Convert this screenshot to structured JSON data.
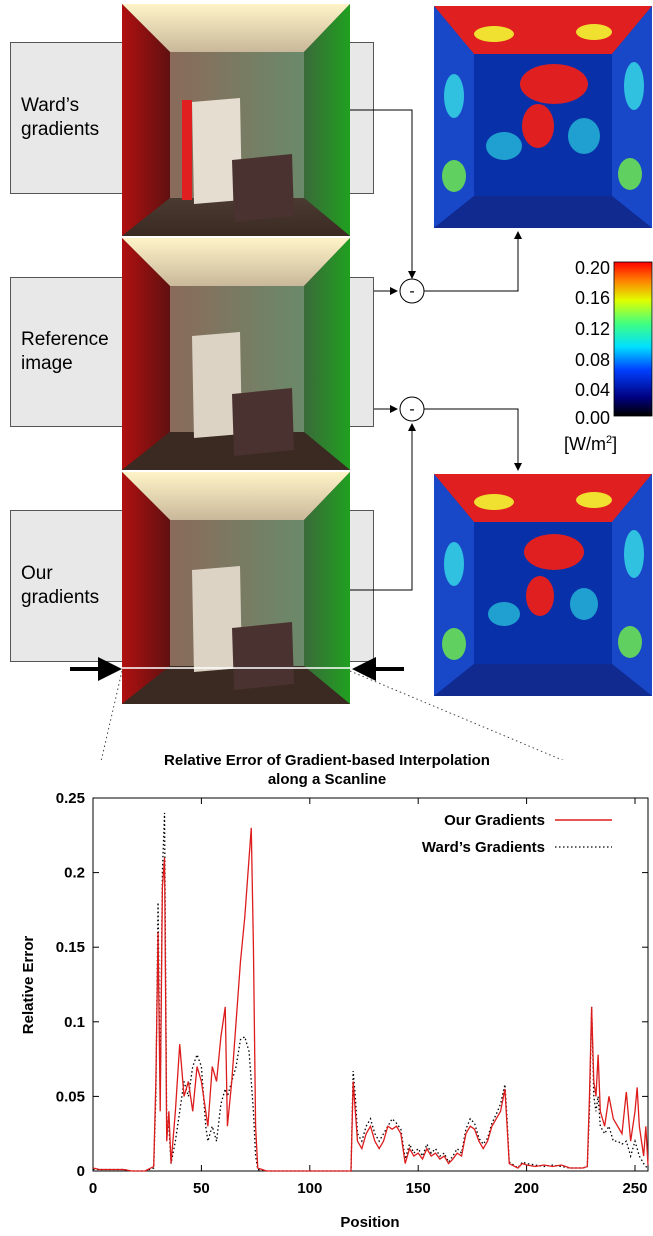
{
  "panels": {
    "wards_label": [
      "Ward’s",
      "gradients"
    ],
    "reference_label": [
      "Reference",
      "image"
    ],
    "ours_label": [
      "Our",
      "gradients"
    ],
    "minus_symbol": "-"
  },
  "colorbar": {
    "ticks": [
      "0.20",
      "0.16",
      "0.12",
      "0.08",
      "0.04",
      "0.00"
    ],
    "unit_main": "[W/m",
    "unit_sup": "2",
    "unit_close": "]"
  },
  "chart_data": {
    "type": "line",
    "title": [
      "Relative Error of Gradient-based Interpolation",
      "along a Scanline"
    ],
    "xlabel": "Position",
    "ylabel": "Relative Error",
    "xlim": [
      0,
      256
    ],
    "ylim": [
      0,
      0.25
    ],
    "xticks": [
      "0",
      "50",
      "100",
      "150",
      "200",
      "250"
    ],
    "yticks": [
      "0",
      "0.05",
      "0.1",
      "0.15",
      "0.2",
      "0.25"
    ],
    "legend_position": "top-right",
    "series": [
      {
        "name": "Our Gradients",
        "color": "#dd1c1c",
        "style": "solid",
        "points": [
          [
            0,
            0.002
          ],
          [
            3,
            0.001
          ],
          [
            6,
            0.001
          ],
          [
            10,
            0.001
          ],
          [
            14,
            0.001
          ],
          [
            18,
            0
          ],
          [
            24,
            0
          ],
          [
            28,
            0.003
          ],
          [
            29,
            0.06
          ],
          [
            30,
            0.16
          ],
          [
            31,
            0.04
          ],
          [
            32,
            0.19
          ],
          [
            33,
            0.21
          ],
          [
            34,
            0.02
          ],
          [
            35,
            0.04
          ],
          [
            36,
            0.005
          ],
          [
            38,
            0.04
          ],
          [
            40,
            0.085
          ],
          [
            42,
            0.05
          ],
          [
            44,
            0.06
          ],
          [
            46,
            0.04
          ],
          [
            48,
            0.07
          ],
          [
            50,
            0.06
          ],
          [
            52,
            0.04
          ],
          [
            53,
            0.03
          ],
          [
            55,
            0.07
          ],
          [
            57,
            0.06
          ],
          [
            59,
            0.09
          ],
          [
            61,
            0.11
          ],
          [
            62,
            0.03
          ],
          [
            64,
            0.06
          ],
          [
            66,
            0.1
          ],
          [
            68,
            0.14
          ],
          [
            70,
            0.17
          ],
          [
            72,
            0.21
          ],
          [
            73,
            0.23
          ],
          [
            74,
            0.15
          ],
          [
            75,
            0.03
          ],
          [
            76,
            0.002
          ],
          [
            80,
            0
          ],
          [
            90,
            0
          ],
          [
            100,
            0
          ],
          [
            110,
            0
          ],
          [
            119,
            0
          ],
          [
            120,
            0.06
          ],
          [
            121,
            0.04
          ],
          [
            122,
            0.02
          ],
          [
            124,
            0.015
          ],
          [
            126,
            0.025
          ],
          [
            128,
            0.03
          ],
          [
            130,
            0.02
          ],
          [
            132,
            0.015
          ],
          [
            134,
            0.02
          ],
          [
            136,
            0.03
          ],
          [
            138,
            0.028
          ],
          [
            140,
            0.03
          ],
          [
            142,
            0.025
          ],
          [
            144,
            0.005
          ],
          [
            146,
            0.015
          ],
          [
            148,
            0.01
          ],
          [
            150,
            0.012
          ],
          [
            152,
            0.008
          ],
          [
            154,
            0.015
          ],
          [
            156,
            0.01
          ],
          [
            158,
            0.012
          ],
          [
            160,
            0.008
          ],
          [
            162,
            0.01
          ],
          [
            164,
            0.005
          ],
          [
            166,
            0.008
          ],
          [
            168,
            0.012
          ],
          [
            170,
            0.01
          ],
          [
            172,
            0.025
          ],
          [
            174,
            0.03
          ],
          [
            176,
            0.028
          ],
          [
            178,
            0.02
          ],
          [
            180,
            0.015
          ],
          [
            182,
            0.02
          ],
          [
            184,
            0.03
          ],
          [
            186,
            0.035
          ],
          [
            188,
            0.04
          ],
          [
            190,
            0.055
          ],
          [
            191,
            0.03
          ],
          [
            192,
            0.005
          ],
          [
            196,
            0.002
          ],
          [
            198,
            0.005
          ],
          [
            200,
            0.004
          ],
          [
            204,
            0.003
          ],
          [
            208,
            0.004
          ],
          [
            212,
            0.003
          ],
          [
            216,
            0.004
          ],
          [
            220,
            0.002
          ],
          [
            226,
            0.002
          ],
          [
            228,
            0.003
          ],
          [
            229,
            0.05
          ],
          [
            230,
            0.11
          ],
          [
            231,
            0.06
          ],
          [
            232,
            0.05
          ],
          [
            233,
            0.078
          ],
          [
            234,
            0.04
          ],
          [
            236,
            0.03
          ],
          [
            238,
            0.05
          ],
          [
            240,
            0.035
          ],
          [
            242,
            0.03
          ],
          [
            244,
            0.025
          ],
          [
            246,
            0.053
          ],
          [
            248,
            0.02
          ],
          [
            250,
            0.04
          ],
          [
            251,
            0.056
          ],
          [
            252,
            0.03
          ],
          [
            254,
            0.01
          ],
          [
            255,
            0.03
          ],
          [
            256,
            0.004
          ]
        ]
      },
      {
        "name": "Ward’s Gradients",
        "color": "#000000",
        "style": "dotted",
        "points": [
          [
            0,
            0.001
          ],
          [
            3,
            0.001
          ],
          [
            6,
            0.001
          ],
          [
            10,
            0.001
          ],
          [
            14,
            0.001
          ],
          [
            18,
            0
          ],
          [
            24,
            0
          ],
          [
            28,
            0.002
          ],
          [
            29,
            0.05
          ],
          [
            30,
            0.18
          ],
          [
            31,
            0.05
          ],
          [
            32,
            0.2
          ],
          [
            33,
            0.24
          ],
          [
            34,
            0.03
          ],
          [
            35,
            0.03
          ],
          [
            36,
            0.005
          ],
          [
            38,
            0.02
          ],
          [
            40,
            0.04
          ],
          [
            42,
            0.06
          ],
          [
            44,
            0.05
          ],
          [
            46,
            0.07
          ],
          [
            48,
            0.078
          ],
          [
            50,
            0.07
          ],
          [
            52,
            0.03
          ],
          [
            53,
            0.02
          ],
          [
            55,
            0.03
          ],
          [
            57,
            0.02
          ],
          [
            59,
            0.045
          ],
          [
            61,
            0.055
          ],
          [
            62,
            0.05
          ],
          [
            64,
            0.06
          ],
          [
            66,
            0.07
          ],
          [
            68,
            0.088
          ],
          [
            70,
            0.09
          ],
          [
            72,
            0.08
          ],
          [
            73,
            0.06
          ],
          [
            74,
            0.04
          ],
          [
            75,
            0.01
          ],
          [
            76,
            0.001
          ],
          [
            80,
            0
          ],
          [
            90,
            0
          ],
          [
            100,
            0
          ],
          [
            110,
            0
          ],
          [
            119,
            0
          ],
          [
            120,
            0.067
          ],
          [
            121,
            0.05
          ],
          [
            122,
            0.025
          ],
          [
            124,
            0.02
          ],
          [
            126,
            0.03
          ],
          [
            128,
            0.035
          ],
          [
            130,
            0.025
          ],
          [
            132,
            0.02
          ],
          [
            134,
            0.025
          ],
          [
            136,
            0.03
          ],
          [
            138,
            0.035
          ],
          [
            140,
            0.032
          ],
          [
            142,
            0.028
          ],
          [
            144,
            0.008
          ],
          [
            146,
            0.018
          ],
          [
            148,
            0.012
          ],
          [
            150,
            0.015
          ],
          [
            152,
            0.01
          ],
          [
            154,
            0.018
          ],
          [
            156,
            0.012
          ],
          [
            158,
            0.015
          ],
          [
            160,
            0.01
          ],
          [
            162,
            0.012
          ],
          [
            164,
            0.006
          ],
          [
            166,
            0.01
          ],
          [
            168,
            0.015
          ],
          [
            170,
            0.012
          ],
          [
            172,
            0.028
          ],
          [
            174,
            0.035
          ],
          [
            176,
            0.032
          ],
          [
            178,
            0.022
          ],
          [
            180,
            0.018
          ],
          [
            182,
            0.022
          ],
          [
            184,
            0.032
          ],
          [
            186,
            0.038
          ],
          [
            188,
            0.045
          ],
          [
            190,
            0.058
          ],
          [
            191,
            0.035
          ],
          [
            192,
            0.006
          ],
          [
            196,
            0.002
          ],
          [
            198,
            0.006
          ],
          [
            200,
            0.005
          ],
          [
            204,
            0.004
          ],
          [
            208,
            0.003
          ],
          [
            212,
            0.004
          ],
          [
            216,
            0.003
          ],
          [
            220,
            0.002
          ],
          [
            226,
            0.002
          ],
          [
            228,
            0.003
          ],
          [
            229,
            0.04
          ],
          [
            230,
            0.11
          ],
          [
            231,
            0.05
          ],
          [
            232,
            0.04
          ],
          [
            233,
            0.05
          ],
          [
            234,
            0.03
          ],
          [
            236,
            0.025
          ],
          [
            238,
            0.03
          ],
          [
            240,
            0.02
          ],
          [
            242,
            0.02
          ],
          [
            244,
            0.018
          ],
          [
            246,
            0.02
          ],
          [
            248,
            0.01
          ],
          [
            250,
            0.02
          ],
          [
            251,
            0.015
          ],
          [
            252,
            0.01
          ],
          [
            254,
            0.005
          ],
          [
            255,
            0.003
          ],
          [
            256,
            0.002
          ]
        ]
      }
    ]
  }
}
